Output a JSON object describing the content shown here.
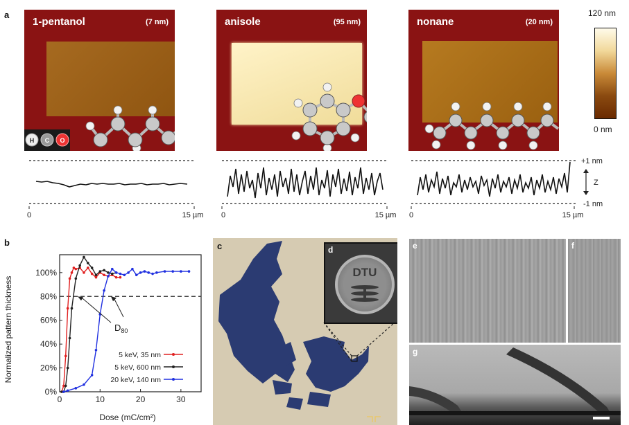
{
  "panels": {
    "a": "a",
    "b": "b",
    "c": "c",
    "d": "d",
    "e": "e",
    "f": "f",
    "g": "g"
  },
  "afm_images": [
    {
      "solvent": "1-pentanol",
      "thickness": "(7 nm)"
    },
    {
      "solvent": "anisole",
      "thickness": "(95 nm)"
    },
    {
      "solvent": "nonane",
      "thickness": "(20 nm)"
    }
  ],
  "atom_legend": [
    "H",
    "C",
    "O"
  ],
  "colorbar": {
    "max": "120 nm",
    "min": "0 nm"
  },
  "profiles": {
    "z_top": "+1 nm",
    "z_bottom": "-1 nm",
    "z_label": "Z",
    "x_start": "0",
    "x_end": "15 µm"
  },
  "dtu_logo": "DTU",
  "colors": {
    "afm_background": "#8a1313",
    "map_land": "#2b3b72",
    "map_sea": "#d6cbb2"
  },
  "chart_data": {
    "type": "line",
    "title": "",
    "xlabel": "Dose (mC/cm²)",
    "ylabel": "Normalized pattern thickness",
    "xlim": [
      0,
      35
    ],
    "ylim": [
      0,
      115
    ],
    "x_ticks": [
      "0",
      "10",
      "20",
      "30"
    ],
    "y_ticks": [
      "0%",
      "20%",
      "40%",
      "60%",
      "80%",
      "100%"
    ],
    "threshold": {
      "value": 80,
      "style": "dashed"
    },
    "annotation": "D80",
    "legend_position": "bottom-right",
    "series": [
      {
        "name": "5 keV, 35 nm",
        "color": "#e02020",
        "x": [
          0.5,
          1,
          1.5,
          2,
          2.5,
          3,
          3.5,
          4,
          5,
          6,
          7,
          8,
          9,
          10,
          11,
          12,
          13,
          14,
          15
        ],
        "y": [
          0,
          5,
          30,
          70,
          95,
          100,
          104,
          103,
          104,
          100,
          104,
          99,
          96,
          100,
          98,
          97,
          98,
          96,
          96
        ]
      },
      {
        "name": "5 keV, 600 nm",
        "color": "#222222",
        "x": [
          0.5,
          1,
          1.5,
          2,
          2.5,
          3,
          4,
          5,
          6,
          7,
          8,
          9,
          10,
          11,
          12,
          13,
          14
        ],
        "y": [
          0,
          0,
          5,
          20,
          45,
          70,
          95,
          106,
          113,
          108,
          104,
          98,
          101,
          102,
          100,
          99,
          100
        ]
      },
      {
        "name": "20 keV, 140 nm",
        "color": "#2030e0",
        "x": [
          1,
          2,
          4,
          6,
          8,
          9,
          10,
          11,
          12,
          13,
          14,
          15,
          16,
          17,
          18,
          19,
          20,
          21,
          22,
          23,
          24,
          26,
          28,
          30,
          32
        ],
        "y": [
          0,
          1,
          3,
          6,
          14,
          35,
          65,
          85,
          97,
          103,
          100,
          99,
          98,
          100,
          103,
          98,
          100,
          101,
          100,
          99,
          100,
          101,
          101,
          101,
          101
        ]
      }
    ]
  }
}
